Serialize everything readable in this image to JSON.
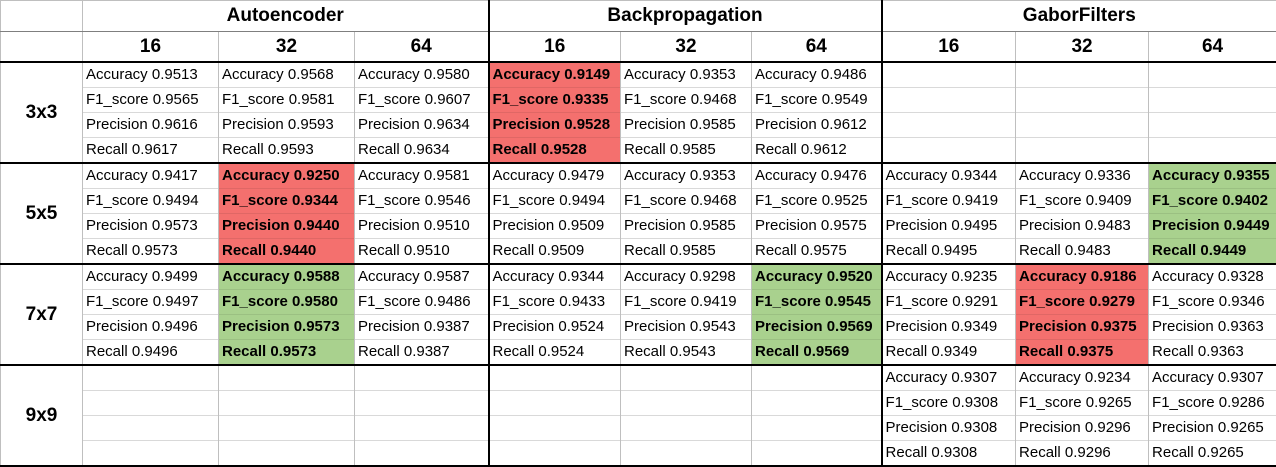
{
  "groups": [
    "Autoencoder",
    "Backpropagation",
    "GaborFilters"
  ],
  "sizes": [
    "16",
    "32",
    "64",
    "16",
    "32",
    "64",
    "16",
    "32",
    "64"
  ],
  "metric_labels": [
    "Accuracy",
    "F1_score",
    "Precision",
    "Recall"
  ],
  "highlight_colors": {
    "red": "#f4706e",
    "green": "#a9d18e"
  },
  "rows": [
    {
      "label": "3x3",
      "cells": [
        {
          "highlight": "",
          "lines": [
            "Accuracy 0.9513",
            "F1_score 0.9565",
            "Precision 0.9616",
            "Recall 0.9617"
          ]
        },
        {
          "highlight": "",
          "lines": [
            "Accuracy 0.9568",
            "F1_score 0.9581",
            "Precision 0.9593",
            "Recall 0.9593"
          ]
        },
        {
          "highlight": "",
          "lines": [
            "Accuracy 0.9580",
            "F1_score 0.9607",
            "Precision 0.9634",
            "Recall 0.9634"
          ]
        },
        {
          "highlight": "red",
          "lines": [
            "Accuracy 0.9149",
            "F1_score 0.9335",
            "Precision 0.9528",
            "Recall 0.9528"
          ]
        },
        {
          "highlight": "",
          "lines": [
            "Accuracy 0.9353",
            "F1_score 0.9468",
            "Precision 0.9585",
            "Recall 0.9585"
          ]
        },
        {
          "highlight": "",
          "lines": [
            "Accuracy 0.9486",
            "F1_score 0.9549",
            "Precision 0.9612",
            "Recall 0.9612"
          ]
        },
        {
          "highlight": "",
          "lines": [
            "",
            "",
            "",
            ""
          ]
        },
        {
          "highlight": "",
          "lines": [
            "",
            "",
            "",
            ""
          ]
        },
        {
          "highlight": "",
          "lines": [
            "",
            "",
            "",
            ""
          ]
        }
      ]
    },
    {
      "label": "5x5",
      "cells": [
        {
          "highlight": "",
          "lines": [
            "Accuracy 0.9417",
            "F1_score 0.9494",
            "Precision 0.9573",
            "Recall 0.9573"
          ]
        },
        {
          "highlight": "red",
          "lines": [
            "Accuracy 0.9250",
            "F1_score 0.9344",
            "Precision 0.9440",
            "Recall 0.9440"
          ]
        },
        {
          "highlight": "",
          "lines": [
            "Accuracy 0.9581",
            "F1_score 0.9546",
            "Precision 0.9510",
            "Recall 0.9510"
          ]
        },
        {
          "highlight": "",
          "lines": [
            "Accuracy 0.9479",
            "F1_score 0.9494",
            "Precision 0.9509",
            "Recall 0.9509"
          ]
        },
        {
          "highlight": "",
          "lines": [
            "Accuracy 0.9353",
            "F1_score 0.9468",
            "Precision 0.9585",
            "Recall 0.9585"
          ]
        },
        {
          "highlight": "",
          "lines": [
            "Accuracy 0.9476",
            "F1_score 0.9525",
            "Precision 0.9575",
            "Recall 0.9575"
          ]
        },
        {
          "highlight": "",
          "lines": [
            "Accuracy 0.9344",
            "F1_score 0.9419",
            "Precision 0.9495",
            "Recall 0.9495"
          ]
        },
        {
          "highlight": "",
          "lines": [
            "Accuracy 0.9336",
            "F1_score 0.9409",
            "Precision 0.9483",
            "Recall 0.9483"
          ]
        },
        {
          "highlight": "green",
          "lines": [
            "Accuracy 0.9355",
            "F1_score 0.9402",
            "Precision 0.9449",
            "Recall 0.9449"
          ]
        }
      ]
    },
    {
      "label": "7x7",
      "cells": [
        {
          "highlight": "",
          "lines": [
            "Accuracy 0.9499",
            "F1_score 0.9497",
            "Precision 0.9496",
            "Recall 0.9496"
          ]
        },
        {
          "highlight": "green",
          "lines": [
            "Accuracy 0.9588",
            "F1_score 0.9580",
            "Precision 0.9573",
            "Recall 0.9573"
          ]
        },
        {
          "highlight": "",
          "lines": [
            "Accuracy 0.9587",
            "F1_score 0.9486",
            "Precision 0.9387",
            "Recall 0.9387"
          ]
        },
        {
          "highlight": "",
          "lines": [
            "Accuracy 0.9344",
            "F1_score 0.9433",
            "Precision 0.9524",
            "Recall 0.9524"
          ]
        },
        {
          "highlight": "",
          "lines": [
            "Accuracy 0.9298",
            "F1_score 0.9419",
            "Precision 0.9543",
            "Recall 0.9543"
          ]
        },
        {
          "highlight": "green",
          "lines": [
            "Accuracy 0.9520",
            "F1_score 0.9545",
            "Precision 0.9569",
            "Recall 0.9569"
          ]
        },
        {
          "highlight": "",
          "lines": [
            "Accuracy 0.9235",
            "F1_score 0.9291",
            "Precision 0.9349",
            "Recall 0.9349"
          ]
        },
        {
          "highlight": "red",
          "lines": [
            "Accuracy 0.9186",
            "F1_score 0.9279",
            "Precision 0.9375",
            "Recall 0.9375"
          ]
        },
        {
          "highlight": "",
          "lines": [
            "Accuracy 0.9328",
            "F1_score 0.9346",
            "Precision 0.9363",
            "Recall 0.9363"
          ]
        }
      ]
    },
    {
      "label": "9x9",
      "cells": [
        {
          "highlight": "",
          "lines": [
            "",
            "",
            "",
            ""
          ]
        },
        {
          "highlight": "",
          "lines": [
            "",
            "",
            "",
            ""
          ]
        },
        {
          "highlight": "",
          "lines": [
            "",
            "",
            "",
            ""
          ]
        },
        {
          "highlight": "",
          "lines": [
            "",
            "",
            "",
            ""
          ]
        },
        {
          "highlight": "",
          "lines": [
            "",
            "",
            "",
            ""
          ]
        },
        {
          "highlight": "",
          "lines": [
            "",
            "",
            "",
            ""
          ]
        },
        {
          "highlight": "",
          "lines": [
            "Accuracy 0.9307",
            "F1_score 0.9308",
            "Precision 0.9308",
            "Recall 0.9308"
          ]
        },
        {
          "highlight": "",
          "lines": [
            "Accuracy 0.9234",
            "F1_score 0.9265",
            "Precision 0.9296",
            "Recall 0.9296"
          ]
        },
        {
          "highlight": "",
          "lines": [
            "Accuracy 0.9307",
            "F1_score 0.9286",
            "Precision 0.9265",
            "Recall 0.9265"
          ]
        }
      ]
    }
  ]
}
